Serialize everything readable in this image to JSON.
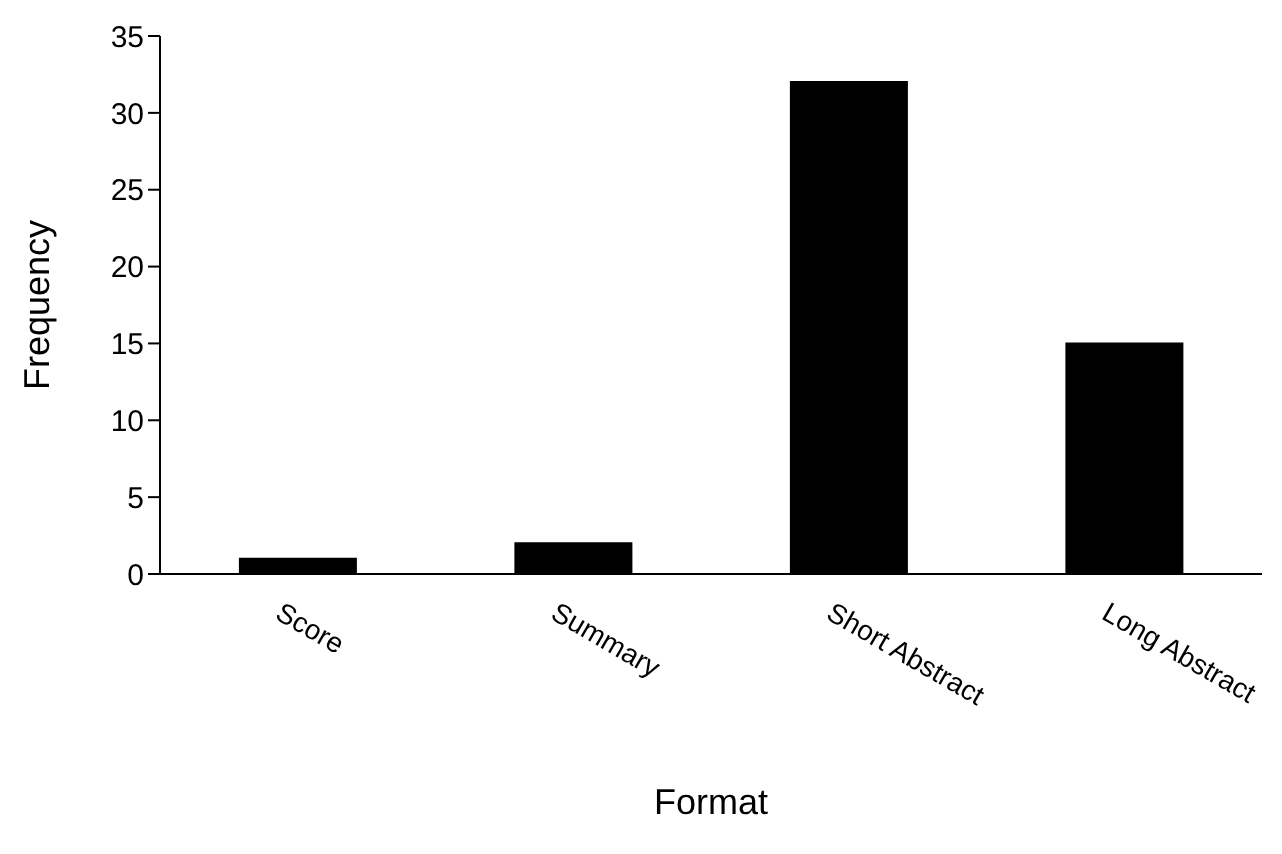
{
  "chart_data": {
    "type": "bar",
    "xlabel": "Format",
    "ylabel": "Frequency",
    "categories": [
      "Score",
      "Summary",
      "Short Abstract",
      "Long Abstract"
    ],
    "values": [
      1,
      2,
      32,
      15
    ],
    "color": "#000000",
    "ylim": [
      0,
      35
    ],
    "yticks": [
      0,
      5,
      10,
      15,
      20,
      25,
      30,
      35
    ],
    "grid": false,
    "legend": false
  }
}
